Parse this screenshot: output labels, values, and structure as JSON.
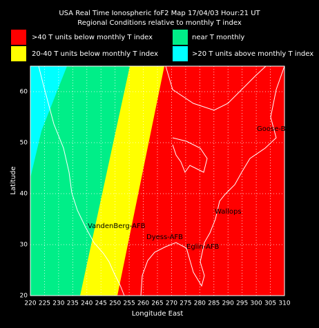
{
  "header": {
    "title": "USA Real Time Ionospheric foF2 Map  17/04/03 Hour:21 UT",
    "subtitle": "Regional Conditions relative to monthly T index"
  },
  "legend": [
    {
      "label": ">40 T units below monthly T index",
      "color": "#ff0000"
    },
    {
      "label": "near T monthly",
      "color": "#00ee88"
    },
    {
      "label": "20-40 T units below monthly T index",
      "color": "#ffff00"
    },
    {
      "label": ">20 T units above monthly T index",
      "color": "#00ffff"
    }
  ],
  "map": {
    "x_label": "Longitude East",
    "y_label": "Latitude",
    "xticks": [
      220,
      225,
      230,
      235,
      240,
      245,
      250,
      255,
      260,
      265,
      270,
      275,
      280,
      285,
      290,
      295,
      300,
      305,
      310
    ],
    "yticks": [
      20,
      30,
      40,
      50,
      60
    ],
    "stations": [
      "Goose-B",
      "Wallops",
      "VandenBerg-AFB",
      "Dyess-AFB",
      "Eglin-AFB"
    ]
  }
}
